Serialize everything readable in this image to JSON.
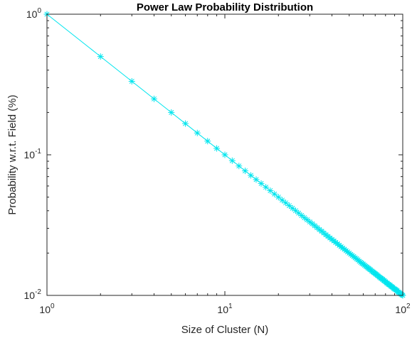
{
  "chart_data": {
    "type": "line",
    "title": "Power Law Probability Distribution",
    "xlabel": "Size of Cluster (N)",
    "ylabel": "Probability w.r.t. Field (%)",
    "xscale": "log",
    "yscale": "log",
    "xlim": [
      1,
      100
    ],
    "ylim": [
      0.01,
      1
    ],
    "grid": false,
    "legend": "none",
    "marker": "asterisk",
    "x_ticks": [
      {
        "value": 1,
        "base": "10",
        "exp": "0"
      },
      {
        "value": 10,
        "base": "10",
        "exp": "1"
      },
      {
        "value": 100,
        "base": "10",
        "exp": "2"
      }
    ],
    "y_ticks": [
      {
        "value": 0.01,
        "base": "10",
        "exp": "-2"
      },
      {
        "value": 0.1,
        "base": "10",
        "exp": "-1"
      },
      {
        "value": 1,
        "base": "10",
        "exp": "0"
      }
    ],
    "series": [
      {
        "color": "#00e5ee",
        "x": [
          1,
          2,
          3,
          4,
          5,
          6,
          7,
          8,
          9,
          10,
          11,
          12,
          13,
          14,
          15,
          16,
          17,
          18,
          19,
          20,
          21,
          22,
          23,
          24,
          25,
          26,
          27,
          28,
          29,
          30,
          31,
          32,
          33,
          34,
          35,
          36,
          37,
          38,
          39,
          40,
          41,
          42,
          43,
          44,
          45,
          46,
          47,
          48,
          49,
          50,
          51,
          52,
          53,
          54,
          55,
          56,
          57,
          58,
          59,
          60,
          61,
          62,
          63,
          64,
          65,
          66,
          67,
          68,
          69,
          70,
          71,
          72,
          73,
          74,
          75,
          76,
          77,
          78,
          79,
          80,
          81,
          82,
          83,
          84,
          85,
          86,
          87,
          88,
          89,
          90,
          91,
          92,
          93,
          94,
          95,
          96,
          97,
          98,
          99,
          100
        ],
        "y": [
          1,
          0.5,
          0.3333,
          0.25,
          0.2,
          0.1667,
          0.1429,
          0.125,
          0.1111,
          0.1,
          0.0909,
          0.0833,
          0.0769,
          0.0714,
          0.0667,
          0.0625,
          0.0588,
          0.0556,
          0.0526,
          0.05,
          0.0476,
          0.0455,
          0.0435,
          0.0417,
          0.04,
          0.0385,
          0.037,
          0.0357,
          0.0345,
          0.0333,
          0.0323,
          0.0313,
          0.0303,
          0.0294,
          0.0286,
          0.0278,
          0.027,
          0.0263,
          0.0256,
          0.025,
          0.0244,
          0.0238,
          0.0233,
          0.0227,
          0.0222,
          0.0217,
          0.0213,
          0.0208,
          0.0204,
          0.02,
          0.0196,
          0.0192,
          0.0189,
          0.0185,
          0.0182,
          0.0179,
          0.0175,
          0.0172,
          0.0169,
          0.0167,
          0.0164,
          0.0161,
          0.0159,
          0.0156,
          0.0154,
          0.0152,
          0.0149,
          0.0147,
          0.0145,
          0.0143,
          0.0141,
          0.0139,
          0.0137,
          0.0135,
          0.0133,
          0.0132,
          0.013,
          0.0128,
          0.0127,
          0.0125,
          0.0123,
          0.0122,
          0.012,
          0.0119,
          0.0118,
          0.0116,
          0.0115,
          0.0114,
          0.0112,
          0.0111,
          0.011,
          0.0109,
          0.0108,
          0.0106,
          0.0105,
          0.0104,
          0.0103,
          0.0102,
          0.0101,
          0.01
        ]
      }
    ]
  }
}
